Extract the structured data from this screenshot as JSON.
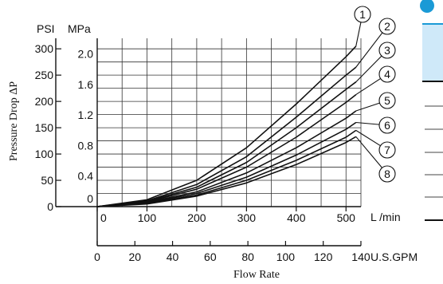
{
  "chart_data": {
    "type": "line",
    "title": "",
    "xlabel": "Flow Rate",
    "ylabel": "Pressure Drop ΔP",
    "x_unit_primary": "L /min",
    "x_unit_secondary": "U.S.GPM",
    "y_unit_psi": "PSI",
    "y_unit_mpa": "MPa",
    "xlim_lpm": [
      0,
      530
    ],
    "ylim_psi": [
      0,
      320
    ],
    "x_ticks_lpm": [
      "0",
      "100",
      "200",
      "300",
      "400",
      "500"
    ],
    "x_ticks_gpm": [
      "0",
      "20",
      "40",
      "60",
      "80",
      "100",
      "120",
      "140"
    ],
    "y_ticks_psi": [
      "0",
      "50",
      "100",
      "150",
      "200",
      "250",
      "300"
    ],
    "y_ticks_mpa": [
      "0",
      "0.4",
      "0.8",
      "1.2",
      "1.6",
      "2.0"
    ],
    "grid": true,
    "series": [
      {
        "name": "1",
        "x": [
          0,
          100,
          200,
          300,
          400,
          500,
          520
        ],
        "y": [
          0,
          13,
          50,
          112,
          195,
          285,
          305
        ]
      },
      {
        "name": "2",
        "x": [
          0,
          100,
          200,
          300,
          400,
          500,
          520
        ],
        "y": [
          0,
          11,
          42,
          95,
          170,
          250,
          265
        ]
      },
      {
        "name": "3",
        "x": [
          0,
          100,
          200,
          300,
          400,
          500,
          520
        ],
        "y": [
          0,
          10,
          37,
          84,
          150,
          223,
          237
        ]
      },
      {
        "name": "4",
        "x": [
          0,
          100,
          200,
          300,
          400,
          500,
          520
        ],
        "y": [
          0,
          9,
          33,
          75,
          132,
          198,
          213
        ]
      },
      {
        "name": "5",
        "x": [
          0,
          100,
          200,
          300,
          400,
          500,
          520
        ],
        "y": [
          0,
          8,
          28,
          64,
          112,
          168,
          182
        ]
      },
      {
        "name": "6",
        "x": [
          0,
          100,
          200,
          300,
          400,
          500,
          520
        ],
        "y": [
          0,
          7,
          25,
          56,
          98,
          147,
          160
        ]
      },
      {
        "name": "7",
        "x": [
          0,
          100,
          200,
          300,
          400,
          500,
          520
        ],
        "y": [
          0,
          6,
          22,
          50,
          88,
          132,
          145
        ]
      },
      {
        "name": "8",
        "x": [
          0,
          100,
          200,
          300,
          400,
          500,
          520
        ],
        "y": [
          0,
          5,
          20,
          45,
          80,
          122,
          133
        ]
      }
    ]
  }
}
